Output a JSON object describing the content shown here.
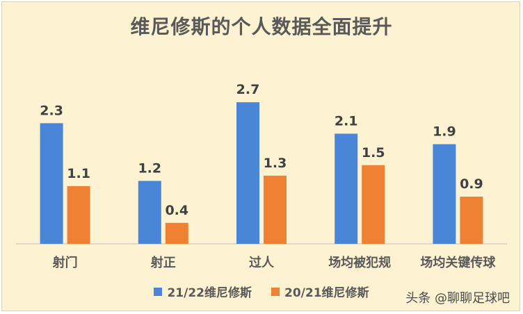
{
  "colors": {
    "series1": "#4a86d8",
    "series2": "#ee8133",
    "background": "#fdf2d1",
    "text": "#595959"
  },
  "watermark": "头条 @聊聊足球吧",
  "chart_data": {
    "type": "bar",
    "title": "维尼修斯的个人数据全面提升",
    "categories": [
      "射门",
      "射正",
      "过人",
      "场均被犯规",
      "场均关键传球"
    ],
    "series": [
      {
        "name": "21/22维尼修斯",
        "values": [
          2.3,
          1.2,
          2.7,
          2.1,
          1.9
        ]
      },
      {
        "name": "20/21维尼修斯",
        "values": [
          1.1,
          0.4,
          1.3,
          1.5,
          0.9
        ]
      }
    ],
    "ylim": [
      0,
      3.0
    ],
    "grid": false,
    "legend": "bottom"
  }
}
